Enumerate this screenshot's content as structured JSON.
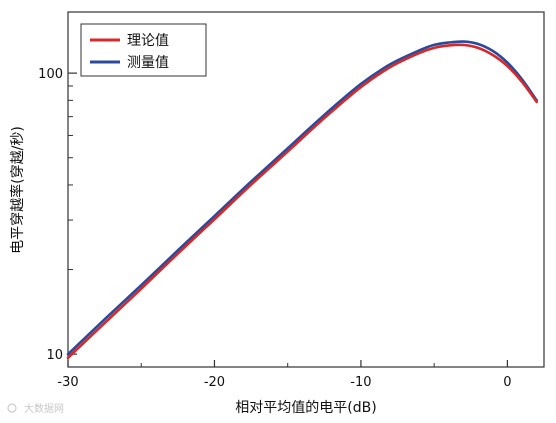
{
  "chart_data": {
    "type": "line",
    "title": "",
    "xlabel": "相对平均值的电平(dB)",
    "ylabel": "电平穿越率(穿越/秒)",
    "xlim": [
      -30,
      2.5
    ],
    "ylim": [
      9,
      165
    ],
    "yscale": "log",
    "grid": false,
    "legend_position": "top-left",
    "x_ticks": [
      -30,
      -20,
      -10,
      0
    ],
    "x_tick_labels": [
      "-30",
      "-20",
      "-10",
      "0"
    ],
    "y_ticks": [
      10,
      100
    ],
    "y_tick_labels": [
      "10",
      "100"
    ],
    "series": [
      {
        "name": "理论值",
        "color": "#d7282a",
        "x": [
          -30,
          -27.5,
          -25,
          -22.5,
          -20,
          -17.5,
          -15,
          -12.5,
          -10,
          -8,
          -6,
          -5,
          -4,
          -3,
          -2,
          -1,
          0,
          1,
          2
        ],
        "y": [
          9.7,
          12.9,
          17.1,
          22.8,
          30.2,
          40.1,
          52.6,
          69.2,
          89.2,
          105,
          118,
          123,
          125.5,
          126,
          123,
          116,
          106,
          93,
          79
        ]
      },
      {
        "name": "测量值",
        "color": "#2b4a9c",
        "x": [
          -30,
          -27.5,
          -25,
          -22.5,
          -20,
          -17.5,
          -15,
          -12.5,
          -10,
          -8,
          -6,
          -5,
          -4,
          -3,
          -2,
          -1,
          0,
          1,
          2
        ],
        "y": [
          10.0,
          13.3,
          17.6,
          23.4,
          31.0,
          41.1,
          54.0,
          71.0,
          91.5,
          107.5,
          120.5,
          126,
          128.5,
          129.5,
          127,
          120,
          109,
          95,
          80
        ]
      }
    ]
  },
  "watermark": {
    "text": "大数据网"
  }
}
